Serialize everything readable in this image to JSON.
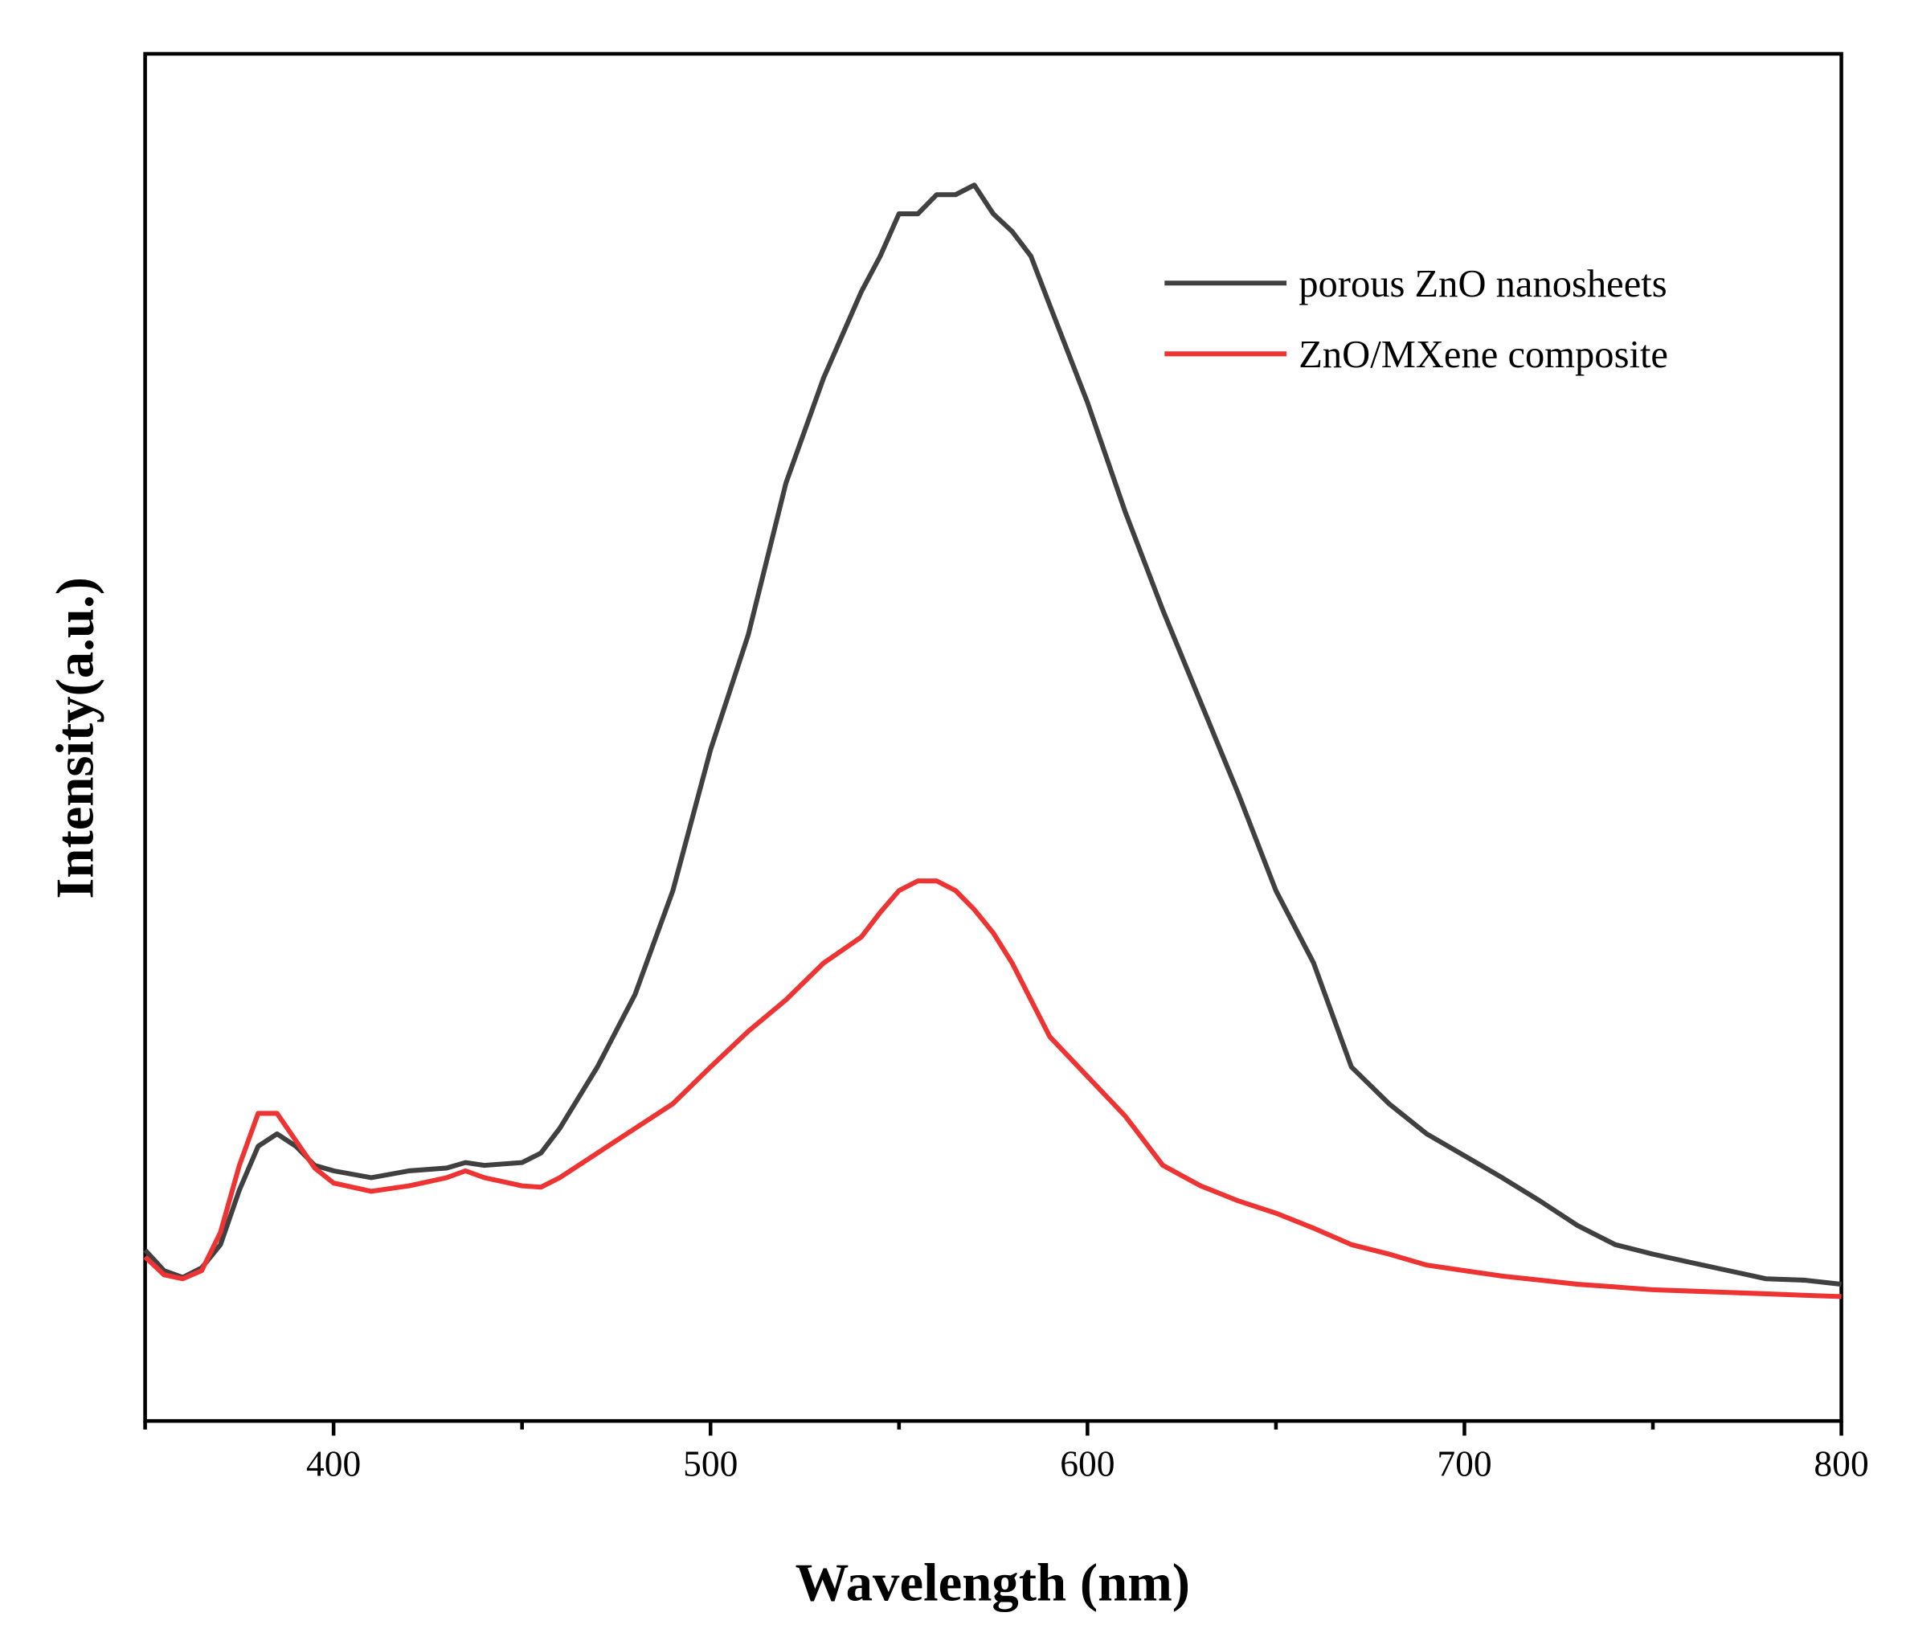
{
  "chart_data": {
    "type": "line",
    "xlabel": "Wavelength (nm)",
    "ylabel": "Intensity(a.u.)",
    "x": [
      350,
      355,
      360,
      365,
      370,
      375,
      380,
      385,
      390,
      395,
      400,
      410,
      420,
      430,
      435,
      440,
      450,
      455,
      460,
      470,
      480,
      490,
      500,
      510,
      520,
      530,
      540,
      545,
      550,
      555,
      560,
      565,
      570,
      575,
      580,
      585,
      590,
      600,
      610,
      620,
      630,
      640,
      650,
      660,
      670,
      680,
      690,
      700,
      710,
      720,
      730,
      740,
      750,
      760,
      770,
      780,
      790,
      800
    ],
    "series": [
      {
        "name": "porous ZnO nanosheets",
        "color": "#404040",
        "values": [
          125,
          110,
          105,
          112,
          129,
          169,
          201,
          210,
          201,
          187,
          183,
          178,
          183,
          185,
          189,
          187,
          189,
          196,
          214,
          259,
          312,
          388,
          491,
          575,
          686,
          763,
          826,
          852,
          883,
          883,
          897,
          897,
          904,
          883,
          870,
          852,
          816,
          745,
          665,
          593,
          526,
          459,
          388,
          335,
          259,
          232,
          210,
          194,
          178,
          161,
          143,
          129,
          122,
          116,
          110,
          104,
          103,
          100
        ]
      },
      {
        "name": "ZnO/MXene composite",
        "color": "#ee3333",
        "values": [
          120,
          107,
          104,
          110,
          138,
          187,
          225,
          225,
          205,
          185,
          174,
          168,
          172,
          178,
          183,
          178,
          172,
          171,
          178,
          196,
          214,
          232,
          259,
          285,
          308,
          335,
          354,
          372,
          388,
          395,
          395,
          388,
          374,
          357,
          335,
          308,
          281,
          252,
          223,
          187,
          172,
          161,
          152,
          141,
          129,
          122,
          114,
          110,
          106,
          103,
          100,
          98,
          96,
          95,
          94,
          93,
          92,
          91
        ]
      }
    ],
    "xlim": [
      350,
      800
    ],
    "xticks": [
      400,
      500,
      600,
      700,
      800
    ],
    "xminorticks": [
      350,
      450,
      550,
      650,
      750
    ],
    "ylim": [
      0,
      1000
    ],
    "legend": "upper right"
  }
}
